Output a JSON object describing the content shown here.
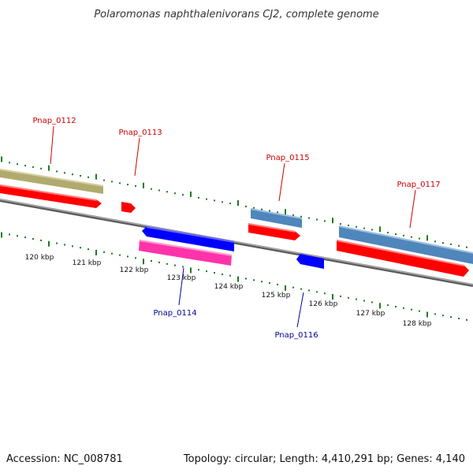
{
  "title": "Polaromonas naphthalenivorans CJ2, complete genome",
  "footer": {
    "accession": "Accession: NC_008781",
    "summary": "Topology: circular; Length: 4,410,291 bp; Genes: 4,140"
  },
  "scale_labels": [
    "120 kbp",
    "121 kbp",
    "122 kbp",
    "123 kbp",
    "124 kbp",
    "125 kbp",
    "126 kbp",
    "127 kbp",
    "128 kbp"
  ],
  "genes": [
    {
      "id": "g-unlabeled-top",
      "label": "",
      "strand": "forward",
      "type": "CDS",
      "color": "#b0aa6e"
    },
    {
      "id": "g-unlabeled-red",
      "label": "",
      "strand": "forward",
      "type": "gene",
      "color": "#ff0000"
    },
    {
      "id": "pnap_0112",
      "label": "Pnap_0112",
      "strand": "forward",
      "label_color": "#cc0000"
    },
    {
      "id": "pnap_0113",
      "label": "Pnap_0113",
      "strand": "forward",
      "type": "gene",
      "color": "#ff0000",
      "label_color": "#cc0000"
    },
    {
      "id": "pnap_0114",
      "label": "Pnap_0114",
      "strand": "reverse",
      "type": "gene",
      "color": "#0000ff",
      "label_color": "#000099"
    },
    {
      "id": "pnap_0114_cds",
      "label": "",
      "strand": "reverse",
      "type": "CDS",
      "color": "#ff33aa"
    },
    {
      "id": "pnap_0115",
      "label": "Pnap_0115",
      "strand": "forward",
      "type": "gene",
      "color": "#ff0000",
      "cds_color": "#4f86bb",
      "label_color": "#cc0000"
    },
    {
      "id": "pnap_0116",
      "label": "Pnap_0116",
      "strand": "reverse",
      "type": "gene",
      "color": "#0000ff",
      "label_color": "#000099"
    },
    {
      "id": "pnap_0117",
      "label": "Pnap_0117",
      "strand": "forward",
      "type": "gene",
      "color": "#ff0000",
      "cds_color": "#4f86bb",
      "label_color": "#cc0000"
    }
  ],
  "colors": {
    "backbone": "#808080",
    "tick": "#1f7a1f",
    "forward_gene": "#ff0000",
    "reverse_gene": "#0000ff",
    "forward_label": "#cc0000",
    "reverse_label": "#000099"
  }
}
